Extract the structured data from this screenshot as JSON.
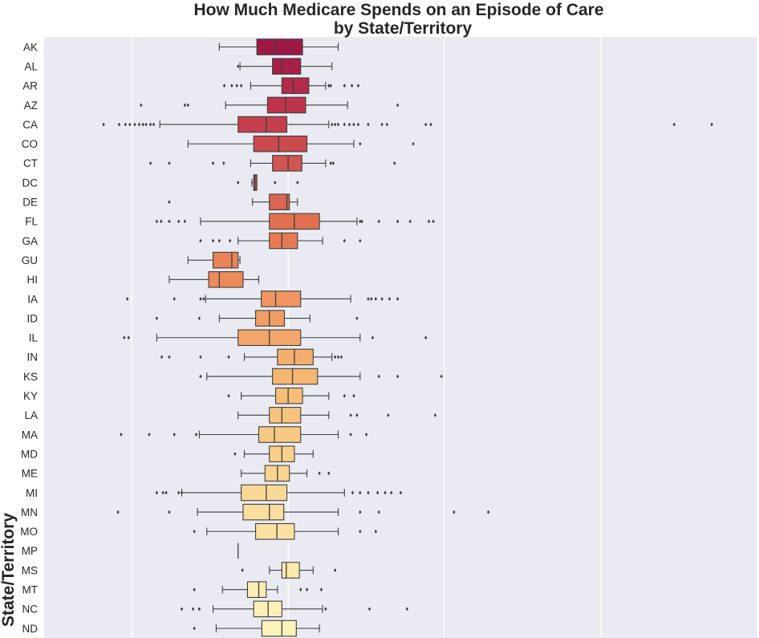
{
  "chart_data": {
    "type": "boxplot",
    "orientation": "horizontal",
    "title_lines": [
      "How Much Medicare Spends on an Episode of Care",
      "by State/Territory"
    ],
    "ylabel": "State/Territory",
    "xlabel": "",
    "xlim": [
      0.72,
      1.86
    ],
    "xticks": [
      0.86,
      1.11,
      1.36,
      1.61,
      1.86
    ],
    "grid": true,
    "palette": "Spectral",
    "background": "#eaeaf2",
    "categories": [
      "AK",
      "AL",
      "AR",
      "AZ",
      "CA",
      "CO",
      "CT",
      "DC",
      "DE",
      "FL",
      "GA",
      "GU",
      "HI",
      "IA",
      "ID",
      "IL",
      "IN",
      "KS",
      "KY",
      "LA",
      "MA",
      "MD",
      "ME",
      "MI",
      "MN",
      "MO",
      "MP",
      "MS",
      "MT",
      "NC",
      "ND"
    ],
    "colors": [
      "#9e1846",
      "#a91f48",
      "#b52a49",
      "#bf344b",
      "#c53f4d",
      "#cb4a4e",
      "#d15550",
      "#d65d51",
      "#db6553",
      "#e0704f",
      "#e67a52",
      "#ea8356",
      "#ec8b5a",
      "#ef955f",
      "#f09e64",
      "#f2a669",
      "#f4ae6d",
      "#f5b672",
      "#f6bd77",
      "#f7c37d",
      "#f8c984",
      "#f9cf8a",
      "#f9d490",
      "#fad997",
      "#fbde9d",
      "#fbe2a3",
      "#fbe6a8",
      "#fbeaad",
      "#fbedb2",
      "#fcf0b6",
      "#fcf3ba"
    ],
    "boxes": [
      {
        "min": 1.0,
        "q1": 1.06,
        "median": 1.09,
        "q3": 1.133,
        "max": 1.19,
        "outliers": []
      },
      {
        "min": 1.033,
        "q1": 1.085,
        "median": 1.1,
        "q3": 1.13,
        "max": 1.18,
        "outliers": [
          1.03
        ]
      },
      {
        "min": 1.05,
        "q1": 1.1,
        "median": 1.118,
        "q3": 1.143,
        "max": 1.17,
        "outliers": [
          1.008,
          1.02,
          1.028,
          1.035,
          1.175,
          1.178,
          1.2,
          1.212,
          1.222
        ]
      },
      {
        "min": 1.01,
        "q1": 1.077,
        "median": 1.106,
        "q3": 1.138,
        "max": 1.205,
        "outliers": [
          0.875,
          0.945,
          0.95,
          1.285
        ]
      },
      {
        "min": 0.905,
        "q1": 1.03,
        "median": 1.075,
        "q3": 1.108,
        "max": 1.175,
        "outliers": [
          0.815,
          0.84,
          0.85,
          0.857,
          0.865,
          0.872,
          0.878,
          0.883,
          0.89,
          0.895,
          1.18,
          1.185,
          1.19,
          1.2,
          1.208,
          1.215,
          1.222,
          1.238,
          1.26,
          1.268,
          1.33,
          1.338,
          1.727,
          1.787
        ]
      },
      {
        "min": 0.95,
        "q1": 1.055,
        "median": 1.095,
        "q3": 1.14,
        "max": 1.215,
        "outliers": [
          1.225,
          1.31
        ]
      },
      {
        "min": 1.05,
        "q1": 1.085,
        "median": 1.11,
        "q3": 1.132,
        "max": 1.17,
        "outliers": [
          0.89,
          0.92,
          0.99,
          1.007,
          1.178,
          1.182,
          1.28
        ]
      },
      {
        "min": 1.052,
        "q1": 1.055,
        "median": 1.057,
        "q3": 1.06,
        "max": 1.06,
        "outliers": [
          1.03,
          1.089,
          1.125
        ]
      },
      {
        "min": 1.053,
        "q1": 1.08,
        "median": 1.108,
        "q3": 1.112,
        "max": 1.125,
        "outliers": [
          0.92
        ]
      },
      {
        "min": 0.97,
        "q1": 1.08,
        "median": 1.12,
        "q3": 1.16,
        "max": 1.22,
        "outliers": [
          0.9,
          0.907,
          0.92,
          0.935,
          0.945,
          1.225,
          1.228,
          1.255,
          1.285,
          1.305,
          1.335,
          1.342
        ]
      },
      {
        "min": 1.03,
        "q1": 1.08,
        "median": 1.1,
        "q3": 1.125,
        "max": 1.165,
        "outliers": [
          0.97,
          0.99,
          1.0,
          1.017,
          1.2,
          1.225
        ]
      },
      {
        "min": 0.95,
        "q1": 0.99,
        "median": 1.02,
        "q3": 1.03,
        "max": 1.033,
        "outliers": []
      },
      {
        "min": 0.92,
        "q1": 0.983,
        "median": 1.0,
        "q3": 1.038,
        "max": 1.063,
        "outliers": []
      },
      {
        "min": 0.978,
        "q1": 1.067,
        "median": 1.09,
        "q3": 1.13,
        "max": 1.21,
        "outliers": [
          0.853,
          0.928,
          0.97,
          0.975,
          1.238,
          1.243,
          1.25,
          1.26,
          1.272,
          1.285
        ]
      },
      {
        "min": 1.0,
        "q1": 1.058,
        "median": 1.08,
        "q3": 1.104,
        "max": 1.145,
        "outliers": [
          0.9,
          0.968,
          1.22
        ]
      },
      {
        "min": 0.9,
        "q1": 1.03,
        "median": 1.08,
        "q3": 1.13,
        "max": 1.225,
        "outliers": [
          0.848,
          0.855,
          1.245,
          1.33
        ]
      },
      {
        "min": 1.04,
        "q1": 1.093,
        "median": 1.12,
        "q3": 1.15,
        "max": 1.18,
        "outliers": [
          0.908,
          0.92,
          0.97,
          1.015,
          1.185,
          1.19,
          1.195
        ]
      },
      {
        "min": 0.98,
        "q1": 1.085,
        "median": 1.117,
        "q3": 1.157,
        "max": 1.225,
        "outliers": [
          0.97,
          1.255,
          1.285,
          1.355
        ]
      },
      {
        "min": 1.035,
        "q1": 1.09,
        "median": 1.11,
        "q3": 1.133,
        "max": 1.175,
        "outliers": [
          1.015,
          1.2,
          1.215
        ]
      },
      {
        "min": 1.03,
        "q1": 1.08,
        "median": 1.1,
        "q3": 1.13,
        "max": 1.175,
        "outliers": [
          1.21,
          1.22,
          1.27,
          1.345
        ]
      },
      {
        "min": 0.968,
        "q1": 1.063,
        "median": 1.088,
        "q3": 1.13,
        "max": 1.19,
        "outliers": [
          0.843,
          0.888,
          0.928,
          0.963,
          1.21,
          1.235
        ]
      },
      {
        "min": 1.04,
        "q1": 1.08,
        "median": 1.1,
        "q3": 1.12,
        "max": 1.15,
        "outliers": [
          1.025
        ]
      },
      {
        "min": 1.035,
        "q1": 1.073,
        "median": 1.093,
        "q3": 1.112,
        "max": 1.14,
        "outliers": [
          1.16,
          1.175
        ]
      },
      {
        "min": 0.94,
        "q1": 1.035,
        "median": 1.075,
        "q3": 1.108,
        "max": 1.2,
        "outliers": [
          0.9,
          0.91,
          0.915,
          0.935,
          0.94,
          1.213,
          1.225,
          1.238,
          1.253,
          1.265,
          1.275,
          1.29
        ]
      },
      {
        "min": 0.965,
        "q1": 1.038,
        "median": 1.08,
        "q3": 1.103,
        "max": 1.19,
        "outliers": [
          0.838,
          0.92,
          1.225,
          1.255,
          1.375,
          1.43
        ]
      },
      {
        "min": 0.98,
        "q1": 1.058,
        "median": 1.092,
        "q3": 1.12,
        "max": 1.19,
        "outliers": [
          0.96,
          1.225,
          1.25
        ]
      },
      {
        "min": 1.03,
        "q1": 1.03,
        "median": 1.03,
        "q3": 1.03,
        "max": 1.03,
        "outliers": []
      },
      {
        "min": 1.08,
        "q1": 1.1,
        "median": 1.107,
        "q3": 1.128,
        "max": 1.15,
        "outliers": [
          1.037,
          1.185
        ]
      },
      {
        "min": 1.005,
        "q1": 1.045,
        "median": 1.063,
        "q3": 1.075,
        "max": 1.093,
        "outliers": [
          0.96,
          1.13,
          1.14,
          1.163
        ]
      },
      {
        "min": 0.99,
        "q1": 1.055,
        "median": 1.078,
        "q3": 1.1,
        "max": 1.165,
        "outliers": [
          0.94,
          0.958,
          0.968,
          1.17,
          1.24,
          1.3
        ]
      },
      {
        "min": 0.995,
        "q1": 1.068,
        "median": 1.1,
        "q3": 1.123,
        "max": 1.16,
        "outliers": [
          0.96
        ]
      }
    ]
  }
}
